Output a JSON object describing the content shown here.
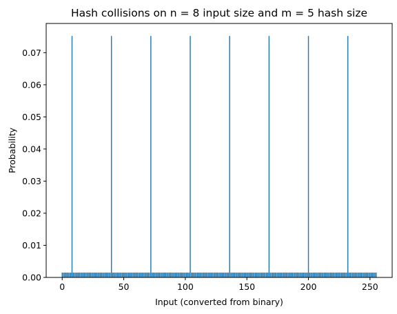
{
  "chart_data": {
    "type": "bar",
    "title": "Hash collisions on n = 8 input size and m = 5 hash size",
    "xlabel": "Input  (converted from binary)",
    "ylabel": "Probability",
    "xlim": [
      -13,
      268
    ],
    "ylim": [
      0.0,
      0.0791
    ],
    "xticks": [
      0,
      50,
      100,
      150,
      200,
      250
    ],
    "yticks": [
      0.0,
      0.01,
      0.02,
      0.03,
      0.04,
      0.05,
      0.06,
      0.07
    ],
    "ytick_labels": [
      "0.00",
      "0.01",
      "0.02",
      "0.03",
      "0.04",
      "0.05",
      "0.06",
      "0.07"
    ],
    "x_start": 0,
    "x_end": 255,
    "baseline_value": 0.0015,
    "peaks": [
      {
        "x": 8,
        "value": 0.0752
      },
      {
        "x": 40,
        "value": 0.0752
      },
      {
        "x": 72,
        "value": 0.0752
      },
      {
        "x": 104,
        "value": 0.0752
      },
      {
        "x": 136,
        "value": 0.0752
      },
      {
        "x": 168,
        "value": 0.0752
      },
      {
        "x": 200,
        "value": 0.0752
      },
      {
        "x": 232,
        "value": 0.0752
      }
    ],
    "bar_color": "#1f77b4",
    "grid": false
  }
}
